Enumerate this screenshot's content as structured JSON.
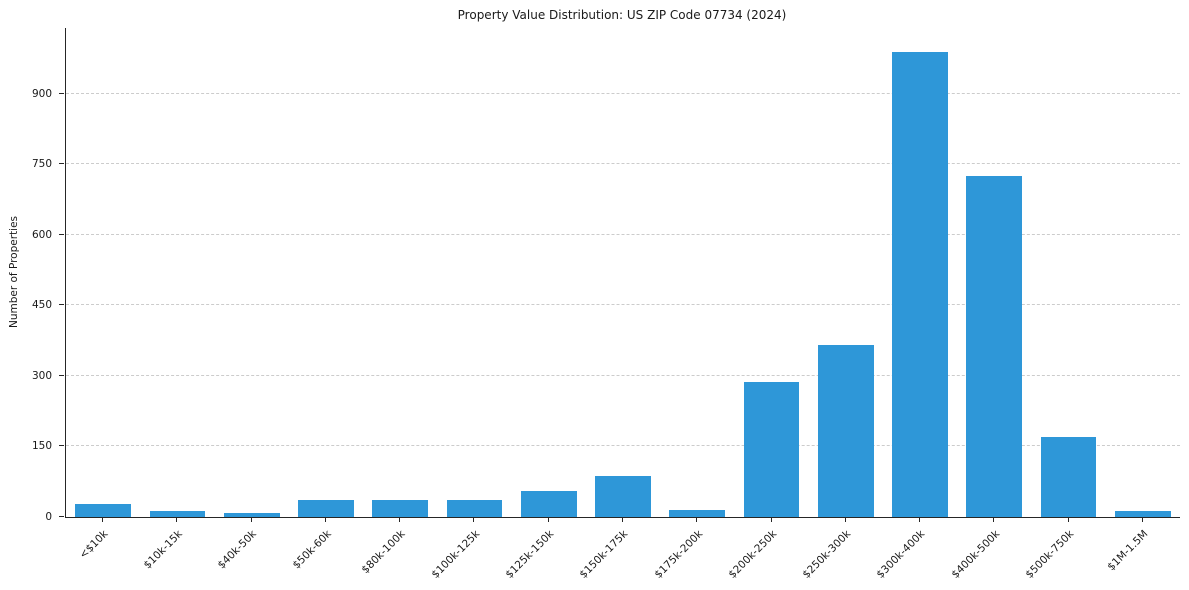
{
  "chart_data": {
    "type": "bar",
    "title": "Property Value Distribution: US ZIP Code 07734 (2024)",
    "xlabel": "",
    "ylabel": "Number of Properties",
    "categories": [
      "<$10k",
      "$10k-15k",
      "$40k-50k",
      "$50k-60k",
      "$80k-100k",
      "$100k-125k",
      "$125k-150k",
      "$150k-175k",
      "$175k-200k",
      "$200k-250k",
      "$250k-300k",
      "$300k-400k",
      "$400k-500k",
      "$500k-750k",
      "$1M-1.5M"
    ],
    "values": [
      28,
      12,
      8,
      36,
      36,
      36,
      55,
      88,
      15,
      287,
      365,
      990,
      725,
      170,
      12
    ],
    "yticks": [
      0,
      150,
      300,
      450,
      600,
      750,
      900
    ],
    "ylim": [
      0,
      1040
    ],
    "bar_color": "#2e97d8",
    "grid": "horizontal-dashed",
    "legend_position": "none"
  }
}
